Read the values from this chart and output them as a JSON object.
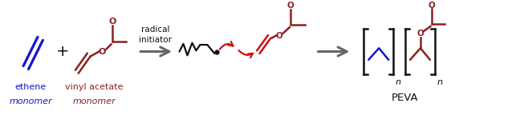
{
  "bg_color": "#ffffff",
  "dark_red": "#8B2020",
  "blue": "#1515CC",
  "black": "#111111",
  "red": "#CC1111",
  "gray": "#666666",
  "fig_width": 6.48,
  "fig_height": 1.59,
  "dpi": 100,
  "ethene_label": "ethene",
  "ethene_sublabel": "monomer",
  "va_label": "vinyl acetate",
  "va_sublabel": "monomer",
  "radical_label": "radical\ninitiator",
  "peva_label": "PEVA"
}
